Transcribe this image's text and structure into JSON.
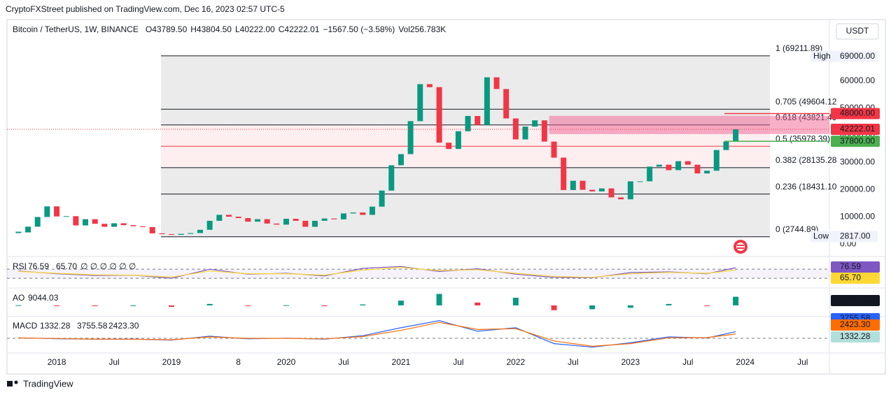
{
  "header": {
    "publisher": "CryptoFXStreet published on TradingView.com, Dec 16, 2023 02:57 UTC-5",
    "symbol": "Bitcoin / TetherUS, 1W, BINANCE",
    "ohlc": [
      {
        "k": "O",
        "v": "43789.50"
      },
      {
        "k": "H",
        "v": "43804.50"
      },
      {
        "k": "L",
        "v": "40222.00"
      },
      {
        "k": "C",
        "v": "42222.01"
      },
      {
        "k": "",
        "v": "−1567.50 (−3.58%)"
      },
      {
        "k": "Vol",
        "v": "256.783K"
      }
    ],
    "currency_button": "USDT"
  },
  "chart_data": [
    {
      "type": "candlestick",
      "up_color": "#089981",
      "down_color": "#f23645",
      "values": [
        4340,
        6450,
        10000,
        13900,
        10200,
        10300,
        6900,
        9200,
        7500,
        6400,
        7700,
        7000,
        6600,
        6300,
        4000,
        3700,
        3450,
        3800,
        4100,
        5300,
        8600,
        10800,
        10100,
        9600,
        8300,
        9200,
        7600,
        7200,
        9350,
        8600,
        6400,
        8600,
        9450,
        9140,
        11300,
        11650,
        10780,
        13800,
        19700,
        29000,
        33100,
        45200,
        58800,
        57700,
        37300,
        35000,
        41500,
        47100,
        43800,
        61300,
        57000,
        46200,
        38500,
        43200,
        45500,
        37700,
        31800,
        19900,
        23300,
        20000,
        19400,
        20500,
        17200,
        16500,
        23100,
        23100,
        28500,
        29200,
        27200,
        30500,
        29200,
        26000,
        27000,
        34600,
        37700,
        42222.01
      ],
      "xlim": [
        -1.2,
        84.8
      ],
      "xticks": [
        {
          "value": 4,
          "label": "2018"
        },
        {
          "value": 10,
          "label": "Jul"
        },
        {
          "value": 16,
          "label": "2019"
        },
        {
          "value": 23,
          "label": "8"
        },
        {
          "value": 28,
          "label": "2020"
        },
        {
          "value": 34,
          "label": "Jul"
        },
        {
          "value": 40,
          "label": "2021"
        },
        {
          "value": 46,
          "label": "Jul"
        },
        {
          "value": 52,
          "label": "2022"
        },
        {
          "value": 58,
          "label": "Jul"
        },
        {
          "value": 64,
          "label": "2023"
        },
        {
          "value": 70,
          "label": "Jul"
        },
        {
          "value": 76,
          "label": "2024"
        },
        {
          "value": 82,
          "label": "Jul"
        }
      ],
      "ylim": [
        -4000,
        82000
      ],
      "yticks": [
        {
          "value": 0,
          "label": "0.00"
        },
        {
          "value": 10000,
          "label": "10000.00"
        },
        {
          "value": 20000,
          "label": "20000.00"
        },
        {
          "value": 30000,
          "label": "30000.00"
        },
        {
          "value": 40000,
          "label": "40000.00"
        },
        {
          "value": 50000,
          "label": "50000.00"
        },
        {
          "value": 60000,
          "label": "60000.00"
        }
      ],
      "fib_levels": [
        {
          "label": "1 (69211.89)",
          "value": 69211.89
        },
        {
          "label": "0.705 (49604.12",
          "value": 49604.12
        },
        {
          "label": "0.618 (43821.49",
          "value": 43821.49
        },
        {
          "label": "0.5 (35978.39)",
          "value": 35978.39,
          "color": "#f23645"
        },
        {
          "label": "0.382 (28135.28",
          "value": 28135.28
        },
        {
          "label": "0.236 (18431.10",
          "value": 18431.1
        },
        {
          "label": "0 (2744.89)",
          "value": 2744.89
        }
      ],
      "zone": [
        40464,
        47165
      ],
      "high": {
        "label": "High",
        "value": 69000,
        "value_label": "69000.00"
      },
      "low": {
        "label": "Low",
        "value": 2817,
        "value_label": "2817.00"
      },
      "price_lines": [
        {
          "value": 48000,
          "label": "48000.00",
          "color": "#f23645"
        },
        {
          "value": 42222.01,
          "label": "42222.01",
          "color": "#f23645"
        },
        {
          "value": 37800,
          "label": "37800.00",
          "color": "#4caf50"
        }
      ]
    },
    {
      "type": "line",
      "title": "RSI",
      "x": [
        0,
        4,
        8,
        12,
        16,
        20,
        24,
        28,
        32,
        36,
        40,
        44,
        48,
        52,
        56,
        60,
        64,
        68,
        72,
        75
      ],
      "ylim": [
        -10,
        120
      ],
      "levels": [
        70,
        30
      ],
      "legend_extra": "∅ ∅ ∅ ∅ ∅ ∅",
      "series": [
        {
          "name": "RSI",
          "color": "#7e57c2",
          "values": [
            62,
            50,
            42,
            44,
            30,
            70,
            48,
            52,
            40,
            74,
            82,
            60,
            72,
            48,
            34,
            32,
            55,
            58,
            50,
            76.59
          ]
        },
        {
          "name": "RSI MA",
          "color": "#fdd835",
          "values": [
            60,
            52,
            45,
            44,
            35,
            62,
            50,
            50,
            44,
            66,
            78,
            64,
            68,
            52,
            38,
            34,
            50,
            56,
            52,
            65.7
          ],
          "last_label": "65.70"
        }
      ]
    },
    {
      "type": "histogram",
      "title": "AO",
      "x": [
        0,
        4,
        8,
        12,
        16,
        20,
        24,
        28,
        32,
        36,
        40,
        44,
        48,
        52,
        56,
        60,
        64,
        68,
        72,
        75
      ],
      "ylim": [
        -11000,
        17500
      ],
      "up_color": "#089981",
      "down_color": "#f23645",
      "values": [
        200,
        -500,
        -800,
        -400,
        -1500,
        1500,
        -300,
        200,
        -800,
        1000,
        5000,
        12000,
        3000,
        8000,
        -5000,
        -4000,
        -2500,
        1500,
        -500,
        9044.03
      ]
    },
    {
      "type": "line",
      "title": "MACD",
      "x": [
        0,
        4,
        8,
        12,
        16,
        20,
        24,
        28,
        32,
        36,
        40,
        44,
        48,
        52,
        56,
        60,
        64,
        68,
        72,
        75
      ],
      "ylim": [
        -7500,
        11500
      ],
      "histogram": 1332.28,
      "series": [
        {
          "name": "MACD",
          "color": "#2962ff",
          "values": [
            300,
            -200,
            -500,
            -400,
            -1000,
            1200,
            -300,
            100,
            -500,
            1500,
            6000,
            10000,
            4000,
            6000,
            -3000,
            -5000,
            -2500,
            800,
            200,
            3755.58
          ]
        },
        {
          "name": "Signal",
          "color": "#ff6d00",
          "values": [
            200,
            -100,
            -400,
            -500,
            -800,
            800,
            0,
            0,
            -300,
            1000,
            4500,
            9000,
            5000,
            5500,
            -1500,
            -4500,
            -3000,
            300,
            400,
            2423.3
          ],
          "last_label": "2423.30"
        }
      ]
    }
  ],
  "footer": "TradingView"
}
